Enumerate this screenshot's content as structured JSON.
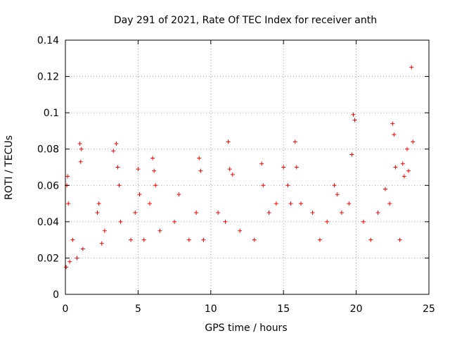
{
  "chart_data": {
    "type": "scatter",
    "title": "Day 291 of 2021, Rate Of TEC Index for receiver anth",
    "xlabel": "GPS time / hours",
    "ylabel": "ROTI / TECUs",
    "xlim": [
      0,
      25
    ],
    "ylim": [
      0,
      0.14
    ],
    "x_ticks": [
      "0",
      "5",
      "10",
      "15",
      "20",
      "25"
    ],
    "y_ticks": [
      "0",
      "0.02",
      "0.04",
      "0.06",
      "0.08",
      "0.1",
      "0.12",
      "0.14"
    ],
    "x_tick_values": [
      0,
      5,
      10,
      15,
      20,
      25
    ],
    "y_tick_values": [
      0,
      0.02,
      0.04,
      0.06,
      0.08,
      0.1,
      0.12,
      0.14
    ],
    "grid": true,
    "marker": "plus",
    "color": "#ff0000",
    "series": [
      {
        "x": [
          0.05,
          0.1,
          0.15,
          0.2,
          0.3,
          0.5,
          0.8,
          1.0,
          1.05,
          1.1,
          1.2,
          2.2,
          2.3,
          2.5,
          2.7,
          3.3,
          3.5,
          3.6,
          3.7,
          3.8,
          4.5,
          4.8,
          5.0,
          5.1,
          5.4,
          5.8,
          6.0,
          6.1,
          6.2,
          6.5,
          7.5,
          7.8,
          8.5,
          9.0,
          9.2,
          9.3,
          9.5,
          10.5,
          11.0,
          11.2,
          11.3,
          11.5,
          12.0,
          13.0,
          13.5,
          13.6,
          14.0,
          14.5,
          15.0,
          15.3,
          15.5,
          15.8,
          15.9,
          16.2,
          17.0,
          17.5,
          18.0,
          18.5,
          18.7,
          19.0,
          19.5,
          19.7,
          19.8,
          19.9,
          20.5,
          21.0,
          21.5,
          22.0,
          22.3,
          22.5,
          22.6,
          22.7,
          23.0,
          23.2,
          23.3,
          23.5,
          23.6,
          23.8,
          23.9
        ],
        "y": [
          0.015,
          0.06,
          0.065,
          0.05,
          0.018,
          0.03,
          0.02,
          0.083,
          0.073,
          0.08,
          0.025,
          0.045,
          0.05,
          0.028,
          0.035,
          0.079,
          0.083,
          0.07,
          0.06,
          0.04,
          0.03,
          0.045,
          0.069,
          0.055,
          0.03,
          0.05,
          0.075,
          0.068,
          0.06,
          0.035,
          0.04,
          0.055,
          0.03,
          0.045,
          0.075,
          0.068,
          0.03,
          0.045,
          0.04,
          0.084,
          0.069,
          0.066,
          0.035,
          0.03,
          0.072,
          0.06,
          0.045,
          0.05,
          0.07,
          0.06,
          0.05,
          0.084,
          0.07,
          0.05,
          0.045,
          0.03,
          0.04,
          0.06,
          0.055,
          0.045,
          0.05,
          0.077,
          0.099,
          0.096,
          0.04,
          0.03,
          0.045,
          0.058,
          0.05,
          0.094,
          0.088,
          0.07,
          0.03,
          0.072,
          0.065,
          0.08,
          0.068,
          0.125,
          0.084
        ]
      }
    ]
  }
}
